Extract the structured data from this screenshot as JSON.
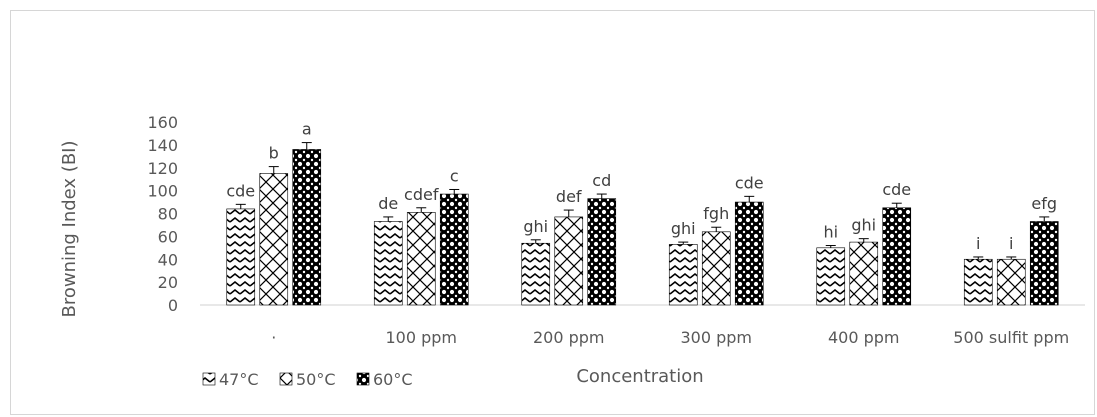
{
  "chart_data": {
    "type": "bar",
    "title": "",
    "xlabel": "Concentration",
    "ylabel": "Browning Index (BI)",
    "ylim": [
      0,
      160
    ],
    "yticks": [
      "0",
      "20",
      "40",
      "60",
      "80",
      "100",
      "120",
      "140",
      "160"
    ],
    "categories": [
      "·",
      "100 ppm",
      "200 ppm",
      "300 ppm",
      "400 ppm",
      "500 sulfit ppm"
    ],
    "series": [
      {
        "name": "47°C",
        "values": [
          84,
          73,
          54,
          53,
          50,
          40
        ],
        "errors": [
          4,
          4,
          3,
          2,
          2,
          2
        ],
        "letters": [
          "cde",
          "de",
          "ghi",
          "ghi",
          "hi",
          "i"
        ],
        "pattern": "zigzag"
      },
      {
        "name": "50°C",
        "values": [
          115,
          81,
          77,
          64,
          55,
          40
        ],
        "errors": [
          6,
          4,
          6,
          4,
          3,
          2
        ],
        "letters": [
          "b",
          "cdef",
          "def",
          "fgh",
          "ghi",
          "i"
        ],
        "pattern": "crosshatch"
      },
      {
        "name": "60°C",
        "values": [
          136,
          97,
          93,
          90,
          85,
          73
        ],
        "errors": [
          6,
          4,
          4,
          5,
          4,
          4
        ],
        "letters": [
          "a",
          "c",
          "cd",
          "cde",
          "cde",
          "efg"
        ],
        "pattern": "dots"
      }
    ],
    "grid": false,
    "legend_position": "bottom-left"
  }
}
